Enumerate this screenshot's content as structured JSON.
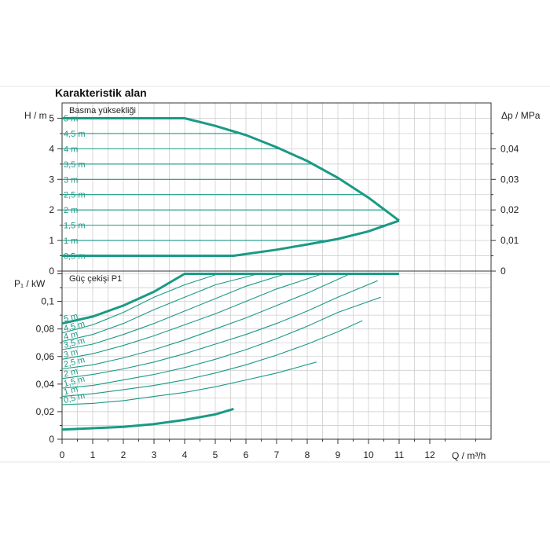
{
  "page": {
    "title": "Karakteristik alan",
    "x_axis_label": "Q / m³/h"
  },
  "chart_data": [
    {
      "type": "line",
      "subtitle": "Basma yüksekliği",
      "ylabel": "H / m",
      "y2label": "Δp / MPa",
      "xlim": [
        0,
        14
      ],
      "ylim": [
        0,
        5.5
      ],
      "y2lim": [
        0,
        0.055
      ],
      "x_ticks": [
        "0",
        "1",
        "2",
        "3",
        "4",
        "5",
        "6",
        "7",
        "8",
        "9",
        "10",
        "11",
        "12"
      ],
      "y_ticks": [
        "0",
        "1",
        "2",
        "3",
        "4",
        "5"
      ],
      "y2_ticks": [
        "0",
        "0,01",
        "0,02",
        "0,03",
        "0,04"
      ],
      "curve_labels": [
        "5 m",
        "4,5 m",
        "4 m",
        "3,5 m",
        "3 m",
        "2,5 m",
        "2 m",
        "1,5 m",
        "1 m",
        "0,5 m"
      ],
      "levels": [
        5,
        4.5,
        4,
        3.5,
        3,
        2.5,
        2,
        1.5,
        1,
        0.5
      ],
      "series": [
        {
          "values": [
            [
              0,
              5
            ],
            [
              4,
              5
            ],
            [
              5,
              4.75
            ],
            [
              6,
              4.45
            ],
            [
              7,
              4.05
            ],
            [
              8,
              3.6
            ],
            [
              9,
              3.05
            ],
            [
              10,
              2.4
            ],
            [
              11,
              1.65
            ]
          ]
        },
        {
          "values": [
            [
              0,
              0.5
            ],
            [
              5.6,
              0.5
            ],
            [
              7,
              0.7
            ],
            [
              8,
              0.87
            ],
            [
              9,
              1.05
            ],
            [
              10,
              1.3
            ],
            [
              11,
              1.65
            ]
          ]
        }
      ]
    },
    {
      "type": "line",
      "subtitle": "Güç çekişi P1",
      "ylabel": "P₁ / kW",
      "xlim": [
        0,
        14
      ],
      "ylim": [
        0,
        0.122
      ],
      "y_ticks": [
        "0",
        "0,02",
        "0,04",
        "0,06",
        "0,08",
        "0,1"
      ],
      "y_tick_values": [
        0,
        0.02,
        0.04,
        0.06,
        0.08,
        0.1
      ],
      "top_label": "",
      "curve_labels": [
        "5 m",
        "4,5 m",
        "4 m",
        "3,5 m",
        "3 m",
        "2,5 m",
        "2 m",
        "1,5 m",
        "1 m",
        "0,5 m"
      ],
      "series": [
        {
          "values": [
            [
              0,
              0.084
            ],
            [
              1,
              0.089
            ],
            [
              2,
              0.097
            ],
            [
              3,
              0.107
            ],
            [
              4,
              0.12
            ],
            [
              11,
              0.12
            ]
          ]
        },
        {
          "values": [
            [
              0,
              0.077
            ],
            [
              1,
              0.083
            ],
            [
              2,
              0.092
            ],
            [
              3,
              0.103
            ],
            [
              4,
              0.112
            ],
            [
              5.1,
              0.12
            ]
          ]
        },
        {
          "values": [
            [
              0,
              0.071
            ],
            [
              1,
              0.076
            ],
            [
              2,
              0.084
            ],
            [
              3,
              0.094
            ],
            [
              4,
              0.103
            ],
            [
              5,
              0.112
            ],
            [
              6.4,
              0.12
            ]
          ]
        },
        {
          "values": [
            [
              0,
              0.065
            ],
            [
              1,
              0.069
            ],
            [
              2,
              0.076
            ],
            [
              3,
              0.084
            ],
            [
              4,
              0.093
            ],
            [
              5,
              0.102
            ],
            [
              6,
              0.111
            ],
            [
              7.3,
              0.12
            ]
          ]
        },
        {
          "values": [
            [
              0,
              0.058
            ],
            [
              1,
              0.062
            ],
            [
              2,
              0.068
            ],
            [
              3,
              0.075
            ],
            [
              4,
              0.083
            ],
            [
              5,
              0.091
            ],
            [
              6,
              0.1
            ],
            [
              7,
              0.109
            ],
            [
              8.5,
              0.12
            ]
          ]
        },
        {
          "values": [
            [
              0,
              0.051
            ],
            [
              1,
              0.054
            ],
            [
              2,
              0.059
            ],
            [
              3,
              0.065
            ],
            [
              4,
              0.072
            ],
            [
              5,
              0.08
            ],
            [
              6,
              0.088
            ],
            [
              7,
              0.097
            ],
            [
              8,
              0.106
            ],
            [
              9.4,
              0.12
            ]
          ]
        },
        {
          "values": [
            [
              0,
              0.044
            ],
            [
              1,
              0.047
            ],
            [
              2,
              0.051
            ],
            [
              3,
              0.056
            ],
            [
              4,
              0.062
            ],
            [
              5,
              0.069
            ],
            [
              6,
              0.076
            ],
            [
              7,
              0.084
            ],
            [
              8,
              0.093
            ],
            [
              9,
              0.103
            ],
            [
              10.3,
              0.115
            ]
          ]
        },
        {
          "values": [
            [
              0,
              0.037
            ],
            [
              1,
              0.039
            ],
            [
              2,
              0.043
            ],
            [
              3,
              0.047
            ],
            [
              4,
              0.052
            ],
            [
              5,
              0.058
            ],
            [
              6,
              0.065
            ],
            [
              7,
              0.073
            ],
            [
              8,
              0.082
            ],
            [
              9,
              0.092
            ],
            [
              10.4,
              0.103
            ]
          ]
        },
        {
          "values": [
            [
              0,
              0.031
            ],
            [
              1,
              0.033
            ],
            [
              2,
              0.036
            ],
            [
              3,
              0.039
            ],
            [
              4,
              0.043
            ],
            [
              5,
              0.048
            ],
            [
              6,
              0.054
            ],
            [
              7,
              0.061
            ],
            [
              8,
              0.069
            ],
            [
              9,
              0.078
            ],
            [
              9.8,
              0.086
            ]
          ]
        },
        {
          "values": [
            [
              0,
              0.025
            ],
            [
              1,
              0.026
            ],
            [
              2,
              0.028
            ],
            [
              3,
              0.031
            ],
            [
              4,
              0.034
            ],
            [
              5,
              0.038
            ],
            [
              6,
              0.043
            ],
            [
              7,
              0.048
            ],
            [
              8.3,
              0.056
            ]
          ]
        },
        {
          "values": [
            [
              0,
              0.007
            ],
            [
              1,
              0.008
            ],
            [
              2,
              0.009
            ],
            [
              3,
              0.011
            ],
            [
              4,
              0.014
            ],
            [
              5,
              0.018
            ],
            [
              5.6,
              0.022
            ]
          ]
        }
      ]
    }
  ]
}
